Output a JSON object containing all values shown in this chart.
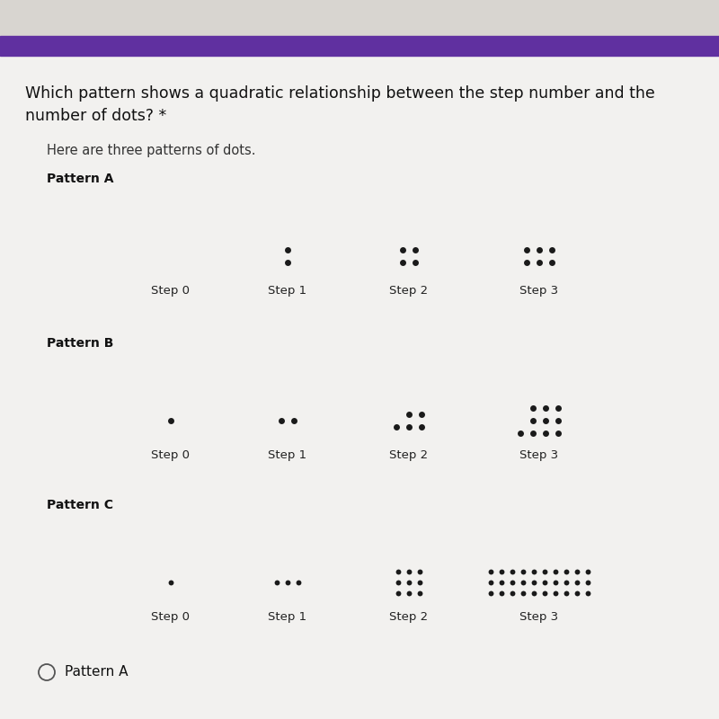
{
  "title_line1": "Which pattern shows a quadratic relationship between the step number and the",
  "title_line2": "number of dots? *",
  "subtitle": "Here are three patterns of dots.",
  "bg_color": "#f2f1ef",
  "header_color": "#6030a0",
  "dot_color": "#1a1a1a",
  "patterns": {
    "A": {
      "label": "Pattern A",
      "steps": [
        "Step 0",
        "Step 1",
        "Step 2",
        "Step 3"
      ],
      "dots": [
        [],
        [
          [
            0,
            1
          ],
          [
            0,
            0
          ]
        ],
        [
          [
            0,
            1
          ],
          [
            1,
            1
          ],
          [
            0,
            0
          ],
          [
            1,
            0
          ]
        ],
        [
          [
            0,
            1
          ],
          [
            1,
            1
          ],
          [
            2,
            1
          ],
          [
            0,
            0
          ],
          [
            1,
            0
          ],
          [
            2,
            0
          ]
        ]
      ]
    },
    "B": {
      "label": "Pattern B",
      "steps": [
        "Step 0",
        "Step 1",
        "Step 2",
        "Step 3"
      ],
      "dots": [
        [
          [
            0,
            0
          ]
        ],
        [
          [
            0,
            0
          ],
          [
            1,
            0
          ]
        ],
        [
          [
            1,
            1
          ],
          [
            2,
            1
          ],
          [
            0,
            0
          ],
          [
            1,
            0
          ],
          [
            2,
            0
          ]
        ],
        [
          [
            1,
            2
          ],
          [
            2,
            2
          ],
          [
            3,
            2
          ],
          [
            1,
            1
          ],
          [
            2,
            1
          ],
          [
            3,
            1
          ],
          [
            0,
            0
          ],
          [
            1,
            0
          ],
          [
            2,
            0
          ],
          [
            3,
            0
          ]
        ]
      ]
    },
    "C": {
      "label": "Pattern C",
      "steps": [
        "Step 0",
        "Step 1",
        "Step 2",
        "Step 3"
      ],
      "dots": [
        [
          [
            0,
            0
          ]
        ],
        [
          [
            0,
            0
          ],
          [
            1,
            0
          ],
          [
            2,
            0
          ]
        ],
        [
          [
            0,
            2
          ],
          [
            1,
            2
          ],
          [
            2,
            2
          ],
          [
            0,
            1
          ],
          [
            1,
            1
          ],
          [
            2,
            1
          ],
          [
            0,
            0
          ],
          [
            1,
            0
          ],
          [
            2,
            0
          ]
        ],
        [
          [
            0,
            2
          ],
          [
            1,
            2
          ],
          [
            2,
            2
          ],
          [
            3,
            2
          ],
          [
            4,
            2
          ],
          [
            5,
            2
          ],
          [
            6,
            2
          ],
          [
            7,
            2
          ],
          [
            8,
            2
          ],
          [
            9,
            2
          ],
          [
            0,
            1
          ],
          [
            1,
            1
          ],
          [
            2,
            1
          ],
          [
            3,
            1
          ],
          [
            4,
            1
          ],
          [
            5,
            1
          ],
          [
            6,
            1
          ],
          [
            7,
            1
          ],
          [
            8,
            1
          ],
          [
            9,
            1
          ],
          [
            0,
            0
          ],
          [
            1,
            0
          ],
          [
            2,
            0
          ],
          [
            3,
            0
          ],
          [
            4,
            0
          ],
          [
            5,
            0
          ],
          [
            6,
            0
          ],
          [
            7,
            0
          ],
          [
            8,
            0
          ],
          [
            9,
            0
          ]
        ]
      ]
    }
  },
  "answer_label": "Pattern A"
}
